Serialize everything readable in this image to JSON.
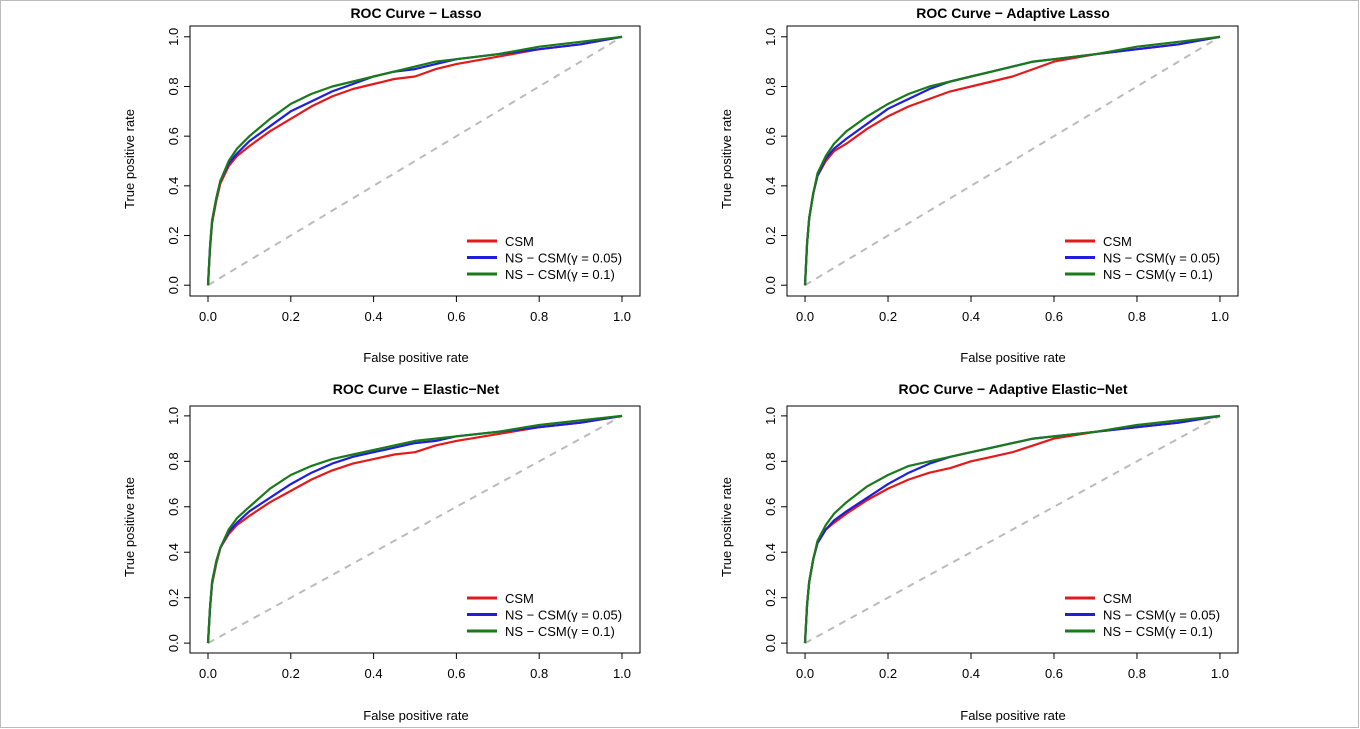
{
  "chart_data": [
    {
      "type": "line",
      "title": "ROC Curve − Lasso",
      "xlabel": "False positive rate",
      "ylabel": "True positive rate",
      "xlim": [
        0,
        1
      ],
      "ylim": [
        0,
        1
      ],
      "xticks": [
        "0.0",
        "0.2",
        "0.4",
        "0.6",
        "0.8",
        "1.0"
      ],
      "yticks": [
        "0.0",
        "0.2",
        "0.4",
        "0.6",
        "0.8",
        "1.0"
      ],
      "legend_position": "bottom-right",
      "reference_line": {
        "x": [
          0,
          1
        ],
        "y": [
          0,
          1
        ],
        "color": "#bbbbbb",
        "style": "dashed"
      },
      "series": [
        {
          "name": "CSM",
          "color": "#e31a1c",
          "x": [
            0,
            0.005,
            0.01,
            0.02,
            0.03,
            0.05,
            0.07,
            0.1,
            0.15,
            0.2,
            0.25,
            0.3,
            0.35,
            0.4,
            0.45,
            0.5,
            0.55,
            0.6,
            0.7,
            0.8,
            0.9,
            1.0
          ],
          "y": [
            0,
            0.15,
            0.25,
            0.34,
            0.41,
            0.48,
            0.52,
            0.56,
            0.62,
            0.67,
            0.72,
            0.76,
            0.79,
            0.81,
            0.83,
            0.84,
            0.87,
            0.89,
            0.92,
            0.95,
            0.97,
            1.0
          ]
        },
        {
          "name": "NS − CSM(γ = 0.05)",
          "color": "#1f1fdb",
          "x": [
            0,
            0.005,
            0.01,
            0.02,
            0.03,
            0.05,
            0.07,
            0.1,
            0.15,
            0.2,
            0.25,
            0.3,
            0.35,
            0.4,
            0.45,
            0.5,
            0.55,
            0.6,
            0.7,
            0.8,
            0.9,
            1.0
          ],
          "y": [
            0,
            0.16,
            0.26,
            0.35,
            0.42,
            0.49,
            0.53,
            0.58,
            0.64,
            0.7,
            0.74,
            0.78,
            0.81,
            0.84,
            0.86,
            0.87,
            0.89,
            0.91,
            0.93,
            0.95,
            0.97,
            1.0
          ]
        },
        {
          "name": "NS − CSM(γ = 0.1)",
          "color": "#1a7a1a",
          "x": [
            0,
            0.005,
            0.01,
            0.02,
            0.03,
            0.05,
            0.07,
            0.1,
            0.15,
            0.2,
            0.25,
            0.3,
            0.35,
            0.4,
            0.45,
            0.5,
            0.55,
            0.6,
            0.7,
            0.8,
            0.9,
            1.0
          ],
          "y": [
            0,
            0.16,
            0.26,
            0.35,
            0.42,
            0.5,
            0.55,
            0.6,
            0.67,
            0.73,
            0.77,
            0.8,
            0.82,
            0.84,
            0.86,
            0.88,
            0.9,
            0.91,
            0.93,
            0.96,
            0.98,
            1.0
          ]
        }
      ]
    },
    {
      "type": "line",
      "title": "ROC Curve − Adaptive Lasso",
      "xlabel": "False positive rate",
      "ylabel": "True positive rate",
      "xlim": [
        0,
        1
      ],
      "ylim": [
        0,
        1
      ],
      "xticks": [
        "0.0",
        "0.2",
        "0.4",
        "0.6",
        "0.8",
        "1.0"
      ],
      "yticks": [
        "0.0",
        "0.2",
        "0.4",
        "0.6",
        "0.8",
        "1.0"
      ],
      "legend_position": "bottom-right",
      "reference_line": {
        "x": [
          0,
          1
        ],
        "y": [
          0,
          1
        ],
        "color": "#bbbbbb",
        "style": "dashed"
      },
      "series": [
        {
          "name": "CSM",
          "color": "#e31a1c",
          "x": [
            0,
            0.005,
            0.01,
            0.02,
            0.03,
            0.05,
            0.07,
            0.1,
            0.15,
            0.2,
            0.25,
            0.3,
            0.35,
            0.4,
            0.45,
            0.5,
            0.55,
            0.6,
            0.7,
            0.8,
            0.9,
            1.0
          ],
          "y": [
            0,
            0.17,
            0.27,
            0.37,
            0.44,
            0.5,
            0.54,
            0.57,
            0.63,
            0.68,
            0.72,
            0.75,
            0.78,
            0.8,
            0.82,
            0.84,
            0.87,
            0.9,
            0.93,
            0.95,
            0.97,
            1.0
          ]
        },
        {
          "name": "NS − CSM(γ = 0.05)",
          "color": "#1f1fdb",
          "x": [
            0,
            0.005,
            0.01,
            0.02,
            0.03,
            0.05,
            0.07,
            0.1,
            0.15,
            0.2,
            0.25,
            0.3,
            0.35,
            0.4,
            0.45,
            0.5,
            0.55,
            0.6,
            0.7,
            0.8,
            0.9,
            1.0
          ],
          "y": [
            0,
            0.17,
            0.27,
            0.37,
            0.44,
            0.51,
            0.55,
            0.59,
            0.65,
            0.71,
            0.75,
            0.79,
            0.82,
            0.84,
            0.86,
            0.88,
            0.9,
            0.91,
            0.93,
            0.95,
            0.97,
            1.0
          ]
        },
        {
          "name": "NS − CSM(γ = 0.1)",
          "color": "#1a7a1a",
          "x": [
            0,
            0.005,
            0.01,
            0.02,
            0.03,
            0.05,
            0.07,
            0.1,
            0.15,
            0.2,
            0.25,
            0.3,
            0.35,
            0.4,
            0.45,
            0.5,
            0.55,
            0.6,
            0.7,
            0.8,
            0.9,
            1.0
          ],
          "y": [
            0,
            0.17,
            0.27,
            0.37,
            0.45,
            0.52,
            0.57,
            0.62,
            0.68,
            0.73,
            0.77,
            0.8,
            0.82,
            0.84,
            0.86,
            0.88,
            0.9,
            0.91,
            0.93,
            0.96,
            0.98,
            1.0
          ]
        }
      ]
    },
    {
      "type": "line",
      "title": "ROC Curve − Elastic−Net",
      "xlabel": "False positive rate",
      "ylabel": "True positive rate",
      "xlim": [
        0,
        1
      ],
      "ylim": [
        0,
        1
      ],
      "xticks": [
        "0.0",
        "0.2",
        "0.4",
        "0.6",
        "0.8",
        "1.0"
      ],
      "yticks": [
        "0.0",
        "0.2",
        "0.4",
        "0.6",
        "0.8",
        "1.0"
      ],
      "legend_position": "bottom-right",
      "reference_line": {
        "x": [
          0,
          1
        ],
        "y": [
          0,
          1
        ],
        "color": "#bbbbbb",
        "style": "dashed"
      },
      "series": [
        {
          "name": "CSM",
          "color": "#e31a1c",
          "x": [
            0,
            0.005,
            0.01,
            0.02,
            0.03,
            0.05,
            0.07,
            0.1,
            0.15,
            0.2,
            0.25,
            0.3,
            0.35,
            0.4,
            0.45,
            0.5,
            0.55,
            0.6,
            0.7,
            0.8,
            0.9,
            1.0
          ],
          "y": [
            0,
            0.16,
            0.26,
            0.35,
            0.42,
            0.48,
            0.52,
            0.56,
            0.62,
            0.67,
            0.72,
            0.76,
            0.79,
            0.81,
            0.83,
            0.84,
            0.87,
            0.89,
            0.92,
            0.95,
            0.97,
            1.0
          ]
        },
        {
          "name": "NS − CSM(γ = 0.05)",
          "color": "#1f1fdb",
          "x": [
            0,
            0.005,
            0.01,
            0.02,
            0.03,
            0.05,
            0.07,
            0.1,
            0.15,
            0.2,
            0.25,
            0.3,
            0.35,
            0.4,
            0.45,
            0.5,
            0.55,
            0.6,
            0.7,
            0.8,
            0.9,
            1.0
          ],
          "y": [
            0,
            0.16,
            0.27,
            0.36,
            0.42,
            0.49,
            0.53,
            0.58,
            0.64,
            0.7,
            0.75,
            0.79,
            0.82,
            0.84,
            0.86,
            0.88,
            0.89,
            0.91,
            0.93,
            0.95,
            0.97,
            1.0
          ]
        },
        {
          "name": "NS − CSM(γ = 0.1)",
          "color": "#1a7a1a",
          "x": [
            0,
            0.005,
            0.01,
            0.02,
            0.03,
            0.05,
            0.07,
            0.1,
            0.15,
            0.2,
            0.25,
            0.3,
            0.35,
            0.4,
            0.45,
            0.5,
            0.55,
            0.6,
            0.7,
            0.8,
            0.9,
            1.0
          ],
          "y": [
            0,
            0.16,
            0.27,
            0.36,
            0.42,
            0.5,
            0.55,
            0.6,
            0.68,
            0.74,
            0.78,
            0.81,
            0.83,
            0.85,
            0.87,
            0.89,
            0.9,
            0.91,
            0.93,
            0.96,
            0.98,
            1.0
          ]
        }
      ]
    },
    {
      "type": "line",
      "title": "ROC Curve − Adaptive Elastic−Net",
      "xlabel": "False positive rate",
      "ylabel": "True positive rate",
      "xlim": [
        0,
        1
      ],
      "ylim": [
        0,
        1
      ],
      "xticks": [
        "0.0",
        "0.2",
        "0.4",
        "0.6",
        "0.8",
        "1.0"
      ],
      "yticks": [
        "0.0",
        "0.2",
        "0.4",
        "0.6",
        "0.8",
        "1.0"
      ],
      "legend_position": "bottom-right",
      "reference_line": {
        "x": [
          0,
          1
        ],
        "y": [
          0,
          1
        ],
        "color": "#bbbbbb",
        "style": "dashed"
      },
      "series": [
        {
          "name": "CSM",
          "color": "#e31a1c",
          "x": [
            0,
            0.005,
            0.01,
            0.02,
            0.03,
            0.05,
            0.07,
            0.1,
            0.15,
            0.2,
            0.25,
            0.3,
            0.35,
            0.4,
            0.45,
            0.5,
            0.55,
            0.6,
            0.7,
            0.8,
            0.9,
            1.0
          ],
          "y": [
            0,
            0.17,
            0.27,
            0.37,
            0.44,
            0.5,
            0.53,
            0.57,
            0.63,
            0.68,
            0.72,
            0.75,
            0.77,
            0.8,
            0.82,
            0.84,
            0.87,
            0.9,
            0.93,
            0.95,
            0.97,
            1.0
          ]
        },
        {
          "name": "NS − CSM(γ = 0.05)",
          "color": "#1f1fdb",
          "x": [
            0,
            0.005,
            0.01,
            0.02,
            0.03,
            0.05,
            0.07,
            0.1,
            0.15,
            0.2,
            0.25,
            0.3,
            0.35,
            0.4,
            0.45,
            0.5,
            0.55,
            0.6,
            0.7,
            0.8,
            0.9,
            1.0
          ],
          "y": [
            0,
            0.17,
            0.27,
            0.37,
            0.44,
            0.5,
            0.54,
            0.58,
            0.64,
            0.7,
            0.75,
            0.79,
            0.82,
            0.84,
            0.86,
            0.88,
            0.9,
            0.91,
            0.93,
            0.95,
            0.97,
            1.0
          ]
        },
        {
          "name": "NS − CSM(γ = 0.1)",
          "color": "#1a7a1a",
          "x": [
            0,
            0.005,
            0.01,
            0.02,
            0.03,
            0.05,
            0.07,
            0.1,
            0.15,
            0.2,
            0.25,
            0.3,
            0.35,
            0.4,
            0.45,
            0.5,
            0.55,
            0.6,
            0.7,
            0.8,
            0.9,
            1.0
          ],
          "y": [
            0,
            0.17,
            0.27,
            0.37,
            0.45,
            0.52,
            0.57,
            0.62,
            0.69,
            0.74,
            0.78,
            0.8,
            0.82,
            0.84,
            0.86,
            0.88,
            0.9,
            0.91,
            0.93,
            0.96,
            0.98,
            1.0
          ]
        }
      ]
    }
  ]
}
